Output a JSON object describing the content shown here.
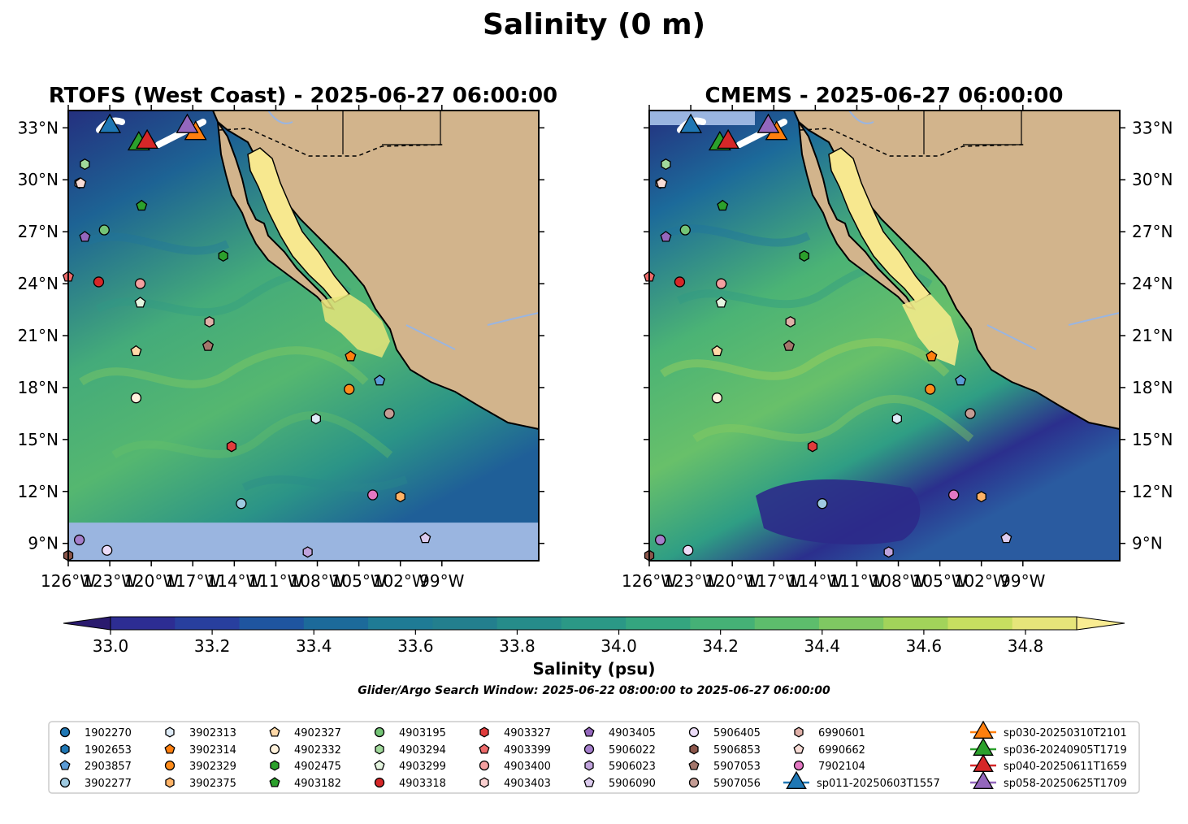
{
  "chart_data": {
    "type": "heatmap",
    "title": "Salinity (0 m)",
    "panels": [
      {
        "title": "RTOFS (West Coast) - 2025-06-27 06:00:00",
        "no_data_band_south_of_lat": 10.2
      },
      {
        "title": "CMEMS - 2025-06-27 06:00:00"
      }
    ],
    "xlim": [
      -126,
      -92
    ],
    "ylim": [
      8,
      34
    ],
    "x_ticks": [
      {
        "value": -126,
        "label": "126°W"
      },
      {
        "value": -123,
        "label": "123°W"
      },
      {
        "value": -120,
        "label": "120°W"
      },
      {
        "value": -117,
        "label": "117°W"
      },
      {
        "value": -114,
        "label": "114°W"
      },
      {
        "value": -111,
        "label": "111°W"
      },
      {
        "value": -108,
        "label": "108°W"
      },
      {
        "value": -105,
        "label": "105°W"
      },
      {
        "value": -102,
        "label": "102°W"
      },
      {
        "value": -99,
        "label": "99°W"
      }
    ],
    "y_ticks": [
      {
        "value": 33,
        "label": "33°N"
      },
      {
        "value": 30,
        "label": "30°N"
      },
      {
        "value": 27,
        "label": "27°N"
      },
      {
        "value": 24,
        "label": "24°N"
      },
      {
        "value": 21,
        "label": "21°N"
      },
      {
        "value": 18,
        "label": "18°N"
      },
      {
        "value": 15,
        "label": "15°N"
      },
      {
        "value": 12,
        "label": "12°N"
      },
      {
        "value": 9,
        "label": "9°N"
      }
    ],
    "colorbar": {
      "label": "Salinity (psu)",
      "range": [
        32.9,
        34.9
      ],
      "tick_labels": [
        "33.0",
        "33.2",
        "33.4",
        "33.6",
        "33.8",
        "34.0",
        "34.2",
        "34.4",
        "34.6",
        "34.8"
      ],
      "colors": [
        "#2a1a6e",
        "#2d2d93",
        "#283f9e",
        "#1f55a0",
        "#1c6a9a",
        "#1f7b95",
        "#237f8e",
        "#268c8a",
        "#2b9886",
        "#34a57f",
        "#45b176",
        "#5dbd6c",
        "#7fc862",
        "#a2d35a",
        "#c7de60",
        "#e6e57a",
        "#f9ec92"
      ],
      "ocean_nodata_color": "#9ab5e0",
      "land_color": "#d2b48c"
    },
    "note": "Glider/Argo Search Window: 2025-06-22 08:00:00 to 2025-06-27 06:00:00",
    "argo_floats": [
      {
        "id": "1902270",
        "shape": "circle",
        "color": "#1f77b4",
        "lon": null,
        "lat": null
      },
      {
        "id": "1902653",
        "shape": "hexagon",
        "color": "#1f77b4",
        "lon": null,
        "lat": null
      },
      {
        "id": "2903857",
        "shape": "pentagon",
        "color": "#5b9bd5",
        "lon": -103.5,
        "lat": 18.4
      },
      {
        "id": "3902277",
        "shape": "circle",
        "color": "#9ecae1",
        "lon": -113.5,
        "lat": 11.3
      },
      {
        "id": "3902313",
        "shape": "hexagon",
        "color": "#deebf7",
        "lon": -108.1,
        "lat": 16.2
      },
      {
        "id": "3902314",
        "shape": "pentagon",
        "color": "#ff7f0e",
        "lon": -105.6,
        "lat": 19.8
      },
      {
        "id": "3902329",
        "shape": "circle",
        "color": "#ff8c1a",
        "lon": -105.7,
        "lat": 17.9
      },
      {
        "id": "3902375",
        "shape": "hexagon",
        "color": "#ffb366",
        "lon": -102.0,
        "lat": 11.7
      },
      {
        "id": "4902327",
        "shape": "pentagon",
        "color": "#ffd9a8",
        "lon": -121.1,
        "lat": 20.1
      },
      {
        "id": "4902332",
        "shape": "circle",
        "color": "#fff2dc",
        "lon": -121.1,
        "lat": 17.4
      },
      {
        "id": "4902475",
        "shape": "hexagon",
        "color": "#2ca02c",
        "lon": -114.8,
        "lat": 25.6
      },
      {
        "id": "4903182",
        "shape": "pentagon",
        "color": "#2ca02c",
        "lon": -120.7,
        "lat": 28.5
      },
      {
        "id": "4903195",
        "shape": "circle",
        "color": "#74c476",
        "lon": -123.4,
        "lat": 27.1
      },
      {
        "id": "4903294",
        "shape": "hexagon",
        "color": "#a1d99b",
        "lon": -124.8,
        "lat": 30.9
      },
      {
        "id": "4903299",
        "shape": "pentagon",
        "color": "#e5f5e0",
        "lon": -120.8,
        "lat": 22.9
      },
      {
        "id": "4903318",
        "shape": "circle",
        "color": "#d62728",
        "lon": -123.8,
        "lat": 24.1
      },
      {
        "id": "4903327",
        "shape": "hexagon",
        "color": "#e03c3c",
        "lon": -114.2,
        "lat": 14.6
      },
      {
        "id": "4903399",
        "shape": "pentagon",
        "color": "#ee6a6a",
        "lon": -126.0,
        "lat": 24.4
      },
      {
        "id": "4903400",
        "shape": "circle",
        "color": "#f4a0a0",
        "lon": -120.8,
        "lat": 24.0
      },
      {
        "id": "4903403",
        "shape": "hexagon",
        "color": "#fbd0d0",
        "lon": -125.2,
        "lat": 29.8
      },
      {
        "id": "4903405",
        "shape": "pentagon",
        "color": "#9467bd",
        "lon": -124.8,
        "lat": 26.7
      },
      {
        "id": "5906022",
        "shape": "circle",
        "color": "#a57fcc",
        "lon": -125.2,
        "lat": 9.2
      },
      {
        "id": "5906023",
        "shape": "hexagon",
        "color": "#c0a3dc",
        "lon": -108.7,
        "lat": 8.5
      },
      {
        "id": "5906090",
        "shape": "pentagon",
        "color": "#dccbee",
        "lon": -100.2,
        "lat": 9.3
      },
      {
        "id": "5906405",
        "shape": "circle",
        "color": "#ecdcf8",
        "lon": -123.2,
        "lat": 8.6
      },
      {
        "id": "5906853",
        "shape": "hexagon",
        "color": "#8c564b",
        "lon": -126.0,
        "lat": 8.3
      },
      {
        "id": "5907053",
        "shape": "pentagon",
        "color": "#a3766b",
        "lon": -115.9,
        "lat": 20.4
      },
      {
        "id": "5907056",
        "shape": "circle",
        "color": "#c49c94",
        "lon": -102.8,
        "lat": 16.5
      },
      {
        "id": "6990601",
        "shape": "hexagon",
        "color": "#e0b0a8",
        "lon": -115.8,
        "lat": 21.8
      },
      {
        "id": "6990662",
        "shape": "pentagon",
        "color": "#f7dcd6",
        "lon": -125.1,
        "lat": 29.8
      },
      {
        "id": "7902104",
        "shape": "circle",
        "color": "#e377c2",
        "lon": -104.0,
        "lat": 11.8
      }
    ],
    "gliders": [
      {
        "id": "sp011-20250603T1557",
        "color": "#1f77b4",
        "lon": -123.0,
        "lat": 33.2
      },
      {
        "id": "sp030-20250310T2101",
        "color": "#ff7f0e",
        "lon": -116.8,
        "lat": 32.8
      },
      {
        "id": "sp036-20240905T1719",
        "color": "#2ca02c",
        "lon": -120.9,
        "lat": 32.2
      },
      {
        "id": "sp040-20250611T1659",
        "color": "#d62728",
        "lon": -120.3,
        "lat": 32.3
      },
      {
        "id": "sp058-20250625T1709",
        "color": "#9467bd",
        "lon": -117.4,
        "lat": 33.2
      }
    ]
  }
}
